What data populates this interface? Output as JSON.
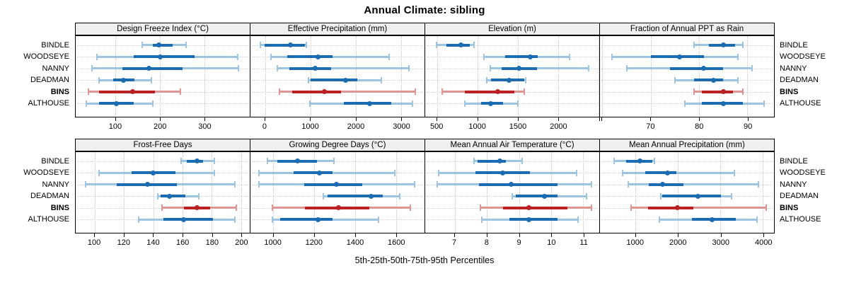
{
  "title": "Annual Climate: sibling",
  "footer": "5th-25th-50th-75th-95th Percentiles",
  "stations": [
    "BINDLE",
    "WOODSEYE",
    "NANNY",
    "DEADMAN",
    "BINS",
    "ALTHOUSE"
  ],
  "highlight_station": "BINS",
  "percentiles_shown": [
    5,
    25,
    50,
    75,
    95
  ],
  "colors": {
    "series_blue": "#1b6cb0",
    "series_blue_light": "#9dc4e0",
    "highlight_red": "#bb2025",
    "highlight_red_light": "#de9594",
    "strip_bg": "#efefef",
    "gridline": "#c9c9c9",
    "row_guide": "#ccd3d8",
    "border": "#000000"
  },
  "chart_data": [
    {
      "type": "dotplot-range",
      "grid_row": 0,
      "grid_col": 0,
      "title": "Design Freeze Index (°C)",
      "xlim": [
        10,
        402
      ],
      "ticks": [
        {
          "value": 100,
          "label": "100"
        },
        {
          "value": 200,
          "label": "200"
        },
        {
          "value": 300,
          "label": "300"
        }
      ],
      "series": [
        {
          "station": "BINDLE",
          "p": [
            160,
            184,
            197,
            228,
            258
          ]
        },
        {
          "station": "WOODSEYE",
          "p": [
            58,
            140,
            200,
            278,
            375
          ]
        },
        {
          "station": "NANNY",
          "p": [
            46,
            115,
            175,
            250,
            376
          ]
        },
        {
          "station": "DEADMAN",
          "p": [
            62,
            94,
            117,
            143,
            180
          ]
        },
        {
          "station": "BINS",
          "p": [
            38,
            62,
            138,
            188,
            246
          ]
        },
        {
          "station": "ALTHOUSE",
          "p": [
            34,
            62,
            101,
            141,
            184
          ]
        }
      ]
    },
    {
      "type": "dotplot-range",
      "grid_row": 0,
      "grid_col": 1,
      "title": "Effective Precipitation (mm)",
      "xlim": [
        -325,
        3520
      ],
      "ticks": [
        {
          "value": 0,
          "label": "0"
        },
        {
          "value": 1000,
          "label": "1000"
        },
        {
          "value": 2000,
          "label": "2000"
        },
        {
          "value": 3000,
          "label": "3000"
        }
      ],
      "series": [
        {
          "station": "BINDLE",
          "p": [
            -105,
            -15,
            560,
            885,
            905
          ]
        },
        {
          "station": "WOODSEYE",
          "p": [
            125,
            480,
            1175,
            1490,
            2740
          ]
        },
        {
          "station": "NANNY",
          "p": [
            270,
            535,
            1100,
            1450,
            3170
          ]
        },
        {
          "station": "DEADMAN",
          "p": [
            950,
            1000,
            1780,
            2030,
            2570
          ]
        },
        {
          "station": "BINS",
          "p": [
            315,
            590,
            1305,
            1680,
            3315
          ]
        },
        {
          "station": "ALTHOUSE",
          "p": [
            995,
            1740,
            2310,
            2790,
            3250
          ]
        }
      ]
    },
    {
      "type": "dotplot-range",
      "grid_row": 0,
      "grid_col": 2,
      "title": "Elevation (m)",
      "xlim": [
        350,
        2510
      ],
      "ticks": [
        {
          "value": 500,
          "label": "500"
        },
        {
          "value": 1000,
          "label": "1000"
        },
        {
          "value": 1500,
          "label": "1500"
        },
        {
          "value": 2000,
          "label": "2000"
        },
        {
          "value": 2500,
          "label": ""
        }
      ],
      "series": [
        {
          "station": "BINDLE",
          "p": [
            490,
            610,
            790,
            900,
            960
          ]
        },
        {
          "station": "WOODSEYE",
          "p": [
            1080,
            1340,
            1655,
            1750,
            2140
          ]
        },
        {
          "station": "NANNY",
          "p": [
            1160,
            1300,
            1510,
            1740,
            2380
          ]
        },
        {
          "station": "DEADMAN",
          "p": [
            1110,
            1170,
            1390,
            1580,
            1600
          ]
        },
        {
          "station": "BINS",
          "p": [
            560,
            840,
            1250,
            1460,
            1580
          ]
        },
        {
          "station": "ALTHOUSE",
          "p": [
            840,
            1040,
            1165,
            1320,
            1500
          ]
        }
      ]
    },
    {
      "type": "dotplot-range",
      "grid_row": 0,
      "grid_col": 3,
      "title": "Fraction of Annual PPT as Rain",
      "xlim": [
        59.5,
        95.5
      ],
      "ticks": [
        {
          "value": 60,
          "label": ""
        },
        {
          "value": 70,
          "label": "70"
        },
        {
          "value": 80,
          "label": "80"
        },
        {
          "value": 90,
          "label": "90"
        }
      ],
      "series": [
        {
          "station": "BINDLE",
          "p": [
            79,
            82,
            85,
            87.5,
            89
          ]
        },
        {
          "station": "WOODSEYE",
          "p": [
            62,
            70,
            76,
            81,
            88
          ]
        },
        {
          "station": "NANNY",
          "p": [
            65,
            74,
            81,
            85,
            91
          ]
        },
        {
          "station": "DEADMAN",
          "p": [
            75,
            79,
            83,
            85,
            88
          ]
        },
        {
          "station": "BINS",
          "p": [
            79,
            80.5,
            85,
            87,
            89
          ]
        },
        {
          "station": "ALTHOUSE",
          "p": [
            77,
            80.5,
            85,
            89,
            93.5
          ]
        }
      ]
    },
    {
      "type": "dotplot-range",
      "grid_row": 1,
      "grid_col": 0,
      "title": "Frost-Free Days",
      "xlim": [
        87,
        206
      ],
      "ticks": [
        {
          "value": 100,
          "label": "100"
        },
        {
          "value": 120,
          "label": "120"
        },
        {
          "value": 140,
          "label": "140"
        },
        {
          "value": 160,
          "label": "160"
        },
        {
          "value": 180,
          "label": "180"
        },
        {
          "value": 200,
          "label": "200"
        }
      ],
      "series": [
        {
          "station": "BINDLE",
          "p": [
            159,
            163,
            170,
            174,
            182
          ]
        },
        {
          "station": "WOODSEYE",
          "p": [
            103,
            125,
            140,
            155,
            182
          ]
        },
        {
          "station": "NANNY",
          "p": [
            94,
            115,
            136,
            156,
            196
          ]
        },
        {
          "station": "DEADMAN",
          "p": [
            143,
            145,
            151,
            162,
            171
          ]
        },
        {
          "station": "BINS",
          "p": [
            146,
            161,
            170,
            179,
            197
          ]
        },
        {
          "station": "ALTHOUSE",
          "p": [
            130,
            147,
            161,
            181,
            196
          ]
        }
      ]
    },
    {
      "type": "dotplot-range",
      "grid_row": 1,
      "grid_col": 1,
      "title": "Growing Degree Days (°C)",
      "xlim": [
        888,
        1740
      ],
      "ticks": [
        {
          "value": 1000,
          "label": "1000"
        },
        {
          "value": 1200,
          "label": "1200"
        },
        {
          "value": 1400,
          "label": "1400"
        },
        {
          "value": 1600,
          "label": "1600"
        }
      ],
      "series": [
        {
          "station": "BINDLE",
          "p": [
            970,
            1020,
            1120,
            1215,
            1295
          ]
        },
        {
          "station": "WOODSEYE",
          "p": [
            930,
            1100,
            1225,
            1290,
            1595
          ]
        },
        {
          "station": "NANNY",
          "p": [
            930,
            1150,
            1310,
            1435,
            1690
          ]
        },
        {
          "station": "DEADMAN",
          "p": [
            1245,
            1265,
            1480,
            1535,
            1620
          ]
        },
        {
          "station": "BINS",
          "p": [
            995,
            1155,
            1320,
            1470,
            1670
          ]
        },
        {
          "station": "ALTHOUSE",
          "p": [
            995,
            1035,
            1220,
            1290,
            1515
          ]
        }
      ]
    },
    {
      "type": "dotplot-range",
      "grid_row": 1,
      "grid_col": 2,
      "title": "Mean Annual Air Temperature (°C)",
      "xlim": [
        6.08,
        11.5
      ],
      "ticks": [
        {
          "value": 7,
          "label": "7"
        },
        {
          "value": 8,
          "label": "8"
        },
        {
          "value": 9,
          "label": "9"
        },
        {
          "value": 10,
          "label": "10"
        },
        {
          "value": 11,
          "label": "11"
        }
      ],
      "series": [
        {
          "station": "BINDLE",
          "p": [
            7.6,
            7.7,
            8.4,
            8.6,
            9.1
          ]
        },
        {
          "station": "WOODSEYE",
          "p": [
            6.5,
            7.65,
            8.5,
            9.35,
            10.8
          ]
        },
        {
          "station": "NANNY",
          "p": [
            6.45,
            7.75,
            8.75,
            10.2,
            11.25
          ]
        },
        {
          "station": "DEADMAN",
          "p": [
            8.8,
            8.9,
            9.8,
            10.2,
            11.1
          ]
        },
        {
          "station": "BINS",
          "p": [
            7.8,
            8.5,
            9.3,
            10.5,
            11.25
          ]
        },
        {
          "station": "ALTHOUSE",
          "p": [
            7.85,
            8.7,
            9.3,
            10.2,
            10.85
          ]
        }
      ]
    },
    {
      "type": "dotplot-range",
      "grid_row": 1,
      "grid_col": 3,
      "title": "Mean Annual Precipitation (mm)",
      "xlim": [
        160,
        4260
      ],
      "ticks": [
        {
          "value": 1000,
          "label": "1000"
        },
        {
          "value": 2000,
          "label": "2000"
        },
        {
          "value": 3000,
          "label": "3000"
        },
        {
          "value": 4000,
          "label": "4000"
        }
      ],
      "series": [
        {
          "station": "BINDLE",
          "p": [
            500,
            770,
            1100,
            1400,
            1450
          ]
        },
        {
          "station": "WOODSEYE",
          "p": [
            700,
            1220,
            1755,
            1955,
            3320
          ]
        },
        {
          "station": "NANNY",
          "p": [
            825,
            1315,
            1640,
            2120,
            3885
          ]
        },
        {
          "station": "DEADMAN",
          "p": [
            1590,
            1630,
            2465,
            3005,
            3255
          ]
        },
        {
          "station": "BINS",
          "p": [
            890,
            1285,
            1985,
            2355,
            4070
          ]
        },
        {
          "station": "ALTHOUSE",
          "p": [
            1555,
            2320,
            2805,
            3365,
            3860
          ]
        }
      ]
    }
  ]
}
